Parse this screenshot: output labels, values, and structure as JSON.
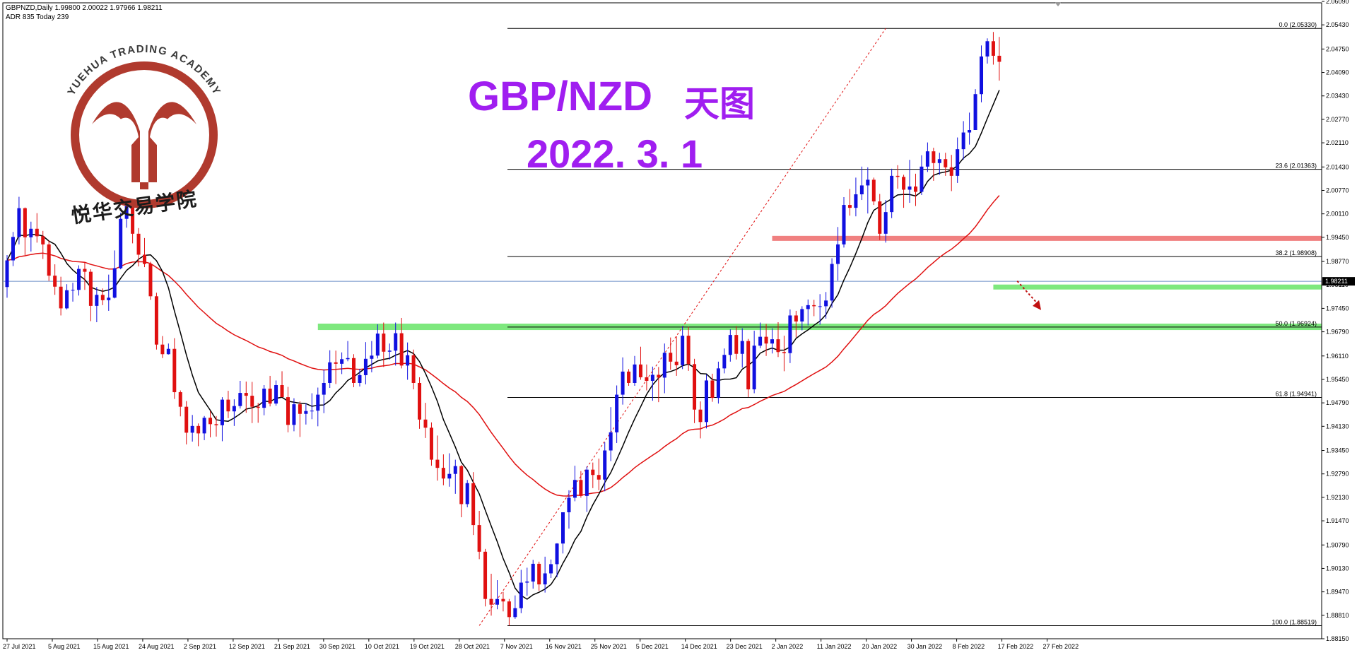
{
  "header": {
    "symbol_line": "GBPNZD,Daily  1.99800 2.00022 1.97966 1.98211",
    "adr_line": "ADR 835  Today 239"
  },
  "titles": {
    "pair": "GBP/NZD",
    "timeframe_cn": "天图",
    "date": "2022. 3. 1"
  },
  "logo": {
    "arc_text": "YUEHUA TRADING ACADEMY",
    "cn_text": "悦华交易学院",
    "brand_color": "#b03a2e"
  },
  "colors": {
    "bull": "#1010e0",
    "bear": "#e01010",
    "ma_fast": "#000000",
    "ma_slow": "#e01010",
    "support_zone": "#7ee87e",
    "resistance_zone": "#f08080",
    "fib_line": "#000000",
    "title": "#a01ef0",
    "current_price_line": "#6a8ec8"
  },
  "chart_data": {
    "type": "candlestick",
    "symbol": "GBPNZD",
    "timeframe": "Daily",
    "current_price": 1.98211,
    "current_price_label": "1.98211",
    "ylim": [
      1.8815,
      2.0605
    ],
    "y_tick_labels": [
      "2.06090",
      "2.05430",
      "2.04750",
      "2.04090",
      "2.03430",
      "2.02770",
      "2.02110",
      "2.01430",
      "2.00770",
      "2.00110",
      "1.99450",
      "1.98770",
      "1.98110",
      "1.97450",
      "1.96790",
      "1.96110",
      "1.95450",
      "1.94790",
      "1.94130",
      "1.93450",
      "1.92790",
      "1.92130",
      "1.91470",
      "1.90790",
      "1.90130",
      "1.89470",
      "1.88810",
      "1.88150"
    ],
    "x_tick_labels": [
      "27 Jul 2021",
      "5 Aug 2021",
      "15 Aug 2021",
      "24 Aug 2021",
      "2 Sep 2021",
      "12 Sep 2021",
      "21 Sep 2021",
      "30 Sep 2021",
      "10 Oct 2021",
      "19 Oct 2021",
      "28 Oct 2021",
      "7 Nov 2021",
      "16 Nov 2021",
      "25 Nov 2021",
      "5 Dec 2021",
      "14 Dec 2021",
      "23 Dec 2021",
      "2 Jan 2022",
      "11 Jan 2022",
      "20 Jan 2022",
      "30 Jan 2022",
      "8 Feb 2022",
      "17 Feb 2022",
      "27 Feb 2022"
    ],
    "fibonacci": [
      {
        "label": "0.0 (2.05330)",
        "price": 2.0533
      },
      {
        "label": "23.6 (2.01363)",
        "price": 2.01363
      },
      {
        "label": "38.2 (1.98908)",
        "price": 1.98908
      },
      {
        "label": "50.0 (1.96924)",
        "price": 1.96924
      },
      {
        "label": "61.8 (1.94941)",
        "price": 1.94941
      },
      {
        "label": "100.0 (1.88519)",
        "price": 1.88519
      }
    ],
    "zones": [
      {
        "kind": "resistance",
        "from_bar": 128,
        "price_low": 1.9935,
        "price_high": 1.9949
      },
      {
        "kind": "support",
        "from_bar": 52,
        "price_low": 1.9684,
        "price_high": 1.9702
      },
      {
        "kind": "support",
        "from_bar": 165,
        "price_low": 1.9798,
        "price_high": 1.9812
      }
    ],
    "trendline": {
      "from_bar": 79,
      "from_price": 1.8852,
      "to_bar": 147,
      "to_price": 2.0533
    },
    "arrow": {
      "from_bar": 169,
      "from_price": 1.9822,
      "to_bar": 173,
      "to_price": 1.974
    },
    "candles": [
      [
        1.9805,
        1.9895,
        1.9775,
        1.988
      ],
      [
        1.988,
        1.996,
        1.9864,
        1.9946
      ],
      [
        1.9946,
        2.0059,
        1.9925,
        2.0027
      ],
      [
        2.0027,
        2.0029,
        1.9895,
        1.9945
      ],
      [
        1.9945,
        1.9989,
        1.9905,
        1.9969
      ],
      [
        1.9969,
        2.0013,
        1.993,
        1.9948
      ],
      [
        1.9948,
        1.9963,
        1.9884,
        1.9925
      ],
      [
        1.9925,
        1.9936,
        1.9822,
        1.9837
      ],
      [
        1.9837,
        1.9869,
        1.9783,
        1.9806
      ],
      [
        1.9806,
        1.9834,
        1.9725,
        1.9745
      ],
      [
        1.9745,
        1.9813,
        1.9742,
        1.9796
      ],
      [
        1.9796,
        1.9817,
        1.9764,
        1.9797
      ],
      [
        1.9797,
        1.9866,
        1.9781,
        1.9856
      ],
      [
        1.9856,
        1.9876,
        1.9797,
        1.9848
      ],
      [
        1.9848,
        1.9855,
        1.9709,
        1.9752
      ],
      [
        1.9752,
        1.9805,
        1.9706,
        1.9783
      ],
      [
        1.9783,
        1.9801,
        1.9754,
        1.9768
      ],
      [
        1.9768,
        1.984,
        1.9738,
        1.9775
      ],
      [
        1.9775,
        1.9908,
        1.9773,
        1.9858
      ],
      [
        1.9858,
        2.0014,
        1.9855,
        1.9997
      ],
      [
        1.9997,
        2.0044,
        1.9972,
        2.0035
      ],
      [
        2.0035,
        2.0045,
        1.9928,
        1.9955
      ],
      [
        1.9955,
        1.9971,
        1.9863,
        1.9896
      ],
      [
        1.9896,
        1.9943,
        1.9861,
        1.987
      ],
      [
        1.987,
        1.9876,
        1.9769,
        1.9779
      ],
      [
        1.9779,
        1.9789,
        1.9629,
        1.9643
      ],
      [
        1.9643,
        1.9667,
        1.9605,
        1.9616
      ],
      [
        1.9616,
        1.9646,
        1.9615,
        1.9631
      ],
      [
        1.9631,
        1.9661,
        1.949,
        1.9509
      ],
      [
        1.9509,
        1.9514,
        1.9441,
        1.9468
      ],
      [
        1.9468,
        1.9484,
        1.9362,
        1.9395
      ],
      [
        1.9395,
        1.9445,
        1.937,
        1.9414
      ],
      [
        1.9414,
        1.9421,
        1.9357,
        1.9393
      ],
      [
        1.9393,
        1.9442,
        1.9374,
        1.9437
      ],
      [
        1.9437,
        1.9456,
        1.9382,
        1.9419
      ],
      [
        1.9419,
        1.9442,
        1.9384,
        1.9416
      ],
      [
        1.9416,
        1.9495,
        1.9371,
        1.9488
      ],
      [
        1.9488,
        1.9513,
        1.9436,
        1.9455
      ],
      [
        1.9455,
        1.9489,
        1.9414,
        1.947
      ],
      [
        1.947,
        1.9541,
        1.9463,
        1.9507
      ],
      [
        1.9507,
        1.9539,
        1.9451,
        1.9499
      ],
      [
        1.9499,
        1.9538,
        1.9422,
        1.9468
      ],
      [
        1.9468,
        1.9479,
        1.9423,
        1.9465
      ],
      [
        1.9465,
        1.9529,
        1.9444,
        1.9519
      ],
      [
        1.9519,
        1.9555,
        1.9469,
        1.9477
      ],
      [
        1.9477,
        1.9542,
        1.9471,
        1.9529
      ],
      [
        1.9529,
        1.9568,
        1.9495,
        1.9495
      ],
      [
        1.9495,
        1.9524,
        1.9396,
        1.9417
      ],
      [
        1.9417,
        1.9492,
        1.9399,
        1.9475
      ],
      [
        1.9475,
        1.9483,
        1.9383,
        1.9448
      ],
      [
        1.9448,
        1.9478,
        1.9418,
        1.9456
      ],
      [
        1.9456,
        1.9506,
        1.9433,
        1.9457
      ],
      [
        1.9457,
        1.9522,
        1.9413,
        1.9502
      ],
      [
        1.9502,
        1.9573,
        1.945,
        1.9535
      ],
      [
        1.9535,
        1.9627,
        1.9521,
        1.9593
      ],
      [
        1.9593,
        1.9626,
        1.9532,
        1.9589
      ],
      [
        1.9589,
        1.9621,
        1.956,
        1.9602
      ],
      [
        1.9602,
        1.9653,
        1.9596,
        1.9605
      ],
      [
        1.9605,
        1.9616,
        1.9523,
        1.9535
      ],
      [
        1.9535,
        1.9575,
        1.9525,
        1.9557
      ],
      [
        1.9557,
        1.965,
        1.9531,
        1.9603
      ],
      [
        1.9603,
        1.9653,
        1.9565,
        1.9612
      ],
      [
        1.9612,
        1.97,
        1.9604,
        1.9674
      ],
      [
        1.9674,
        1.9705,
        1.958,
        1.9623
      ],
      [
        1.9623,
        1.9646,
        1.9601,
        1.9626
      ],
      [
        1.9626,
        1.9705,
        1.9584,
        1.9675
      ],
      [
        1.9675,
        1.9718,
        1.9576,
        1.9584
      ],
      [
        1.9584,
        1.9649,
        1.9544,
        1.9613
      ],
      [
        1.9613,
        1.9629,
        1.9517,
        1.9535
      ],
      [
        1.9535,
        1.9551,
        1.9406,
        1.9432
      ],
      [
        1.9432,
        1.9479,
        1.938,
        1.9409
      ],
      [
        1.9409,
        1.9424,
        1.9302,
        1.9319
      ],
      [
        1.9319,
        1.9387,
        1.926,
        1.9296
      ],
      [
        1.9296,
        1.9334,
        1.9247,
        1.9266
      ],
      [
        1.9266,
        1.9337,
        1.9243,
        1.9279
      ],
      [
        1.9279,
        1.9319,
        1.9223,
        1.9301
      ],
      [
        1.9301,
        1.9304,
        1.9157,
        1.9194
      ],
      [
        1.9194,
        1.9262,
        1.9185,
        1.9253
      ],
      [
        1.9253,
        1.9284,
        1.9107,
        1.9135
      ],
      [
        1.9135,
        1.9175,
        1.9039,
        1.906
      ],
      [
        1.906,
        1.9068,
        1.8906,
        1.8927
      ],
      [
        1.8927,
        1.8998,
        1.888,
        1.8911
      ],
      [
        1.8911,
        1.898,
        1.8898,
        1.8927
      ],
      [
        1.8927,
        1.8947,
        1.8892,
        1.892
      ],
      [
        1.892,
        1.8927,
        1.8852,
        1.8876
      ],
      [
        1.8876,
        1.8937,
        1.8871,
        1.8901
      ],
      [
        1.8901,
        1.9009,
        1.8887,
        1.8973
      ],
      [
        1.8973,
        1.9015,
        1.8936,
        1.8976
      ],
      [
        1.8976,
        1.9037,
        1.8956,
        1.9026
      ],
      [
        1.9026,
        1.9032,
        1.895,
        1.8968
      ],
      [
        1.8968,
        1.9046,
        1.8945,
        1.8999
      ],
      [
        1.8999,
        1.9038,
        1.8986,
        1.9025
      ],
      [
        1.9025,
        1.9084,
        1.8988,
        1.9083
      ],
      [
        1.9083,
        1.9171,
        1.9055,
        1.9171
      ],
      [
        1.9171,
        1.9233,
        1.9125,
        1.9212
      ],
      [
        1.9212,
        1.9302,
        1.9202,
        1.9262
      ],
      [
        1.9262,
        1.9287,
        1.9212,
        1.9217
      ],
      [
        1.9217,
        1.93,
        1.9172,
        1.9291
      ],
      [
        1.9291,
        1.9311,
        1.9239,
        1.9276
      ],
      [
        1.9276,
        1.9322,
        1.9233,
        1.9263
      ],
      [
        1.9263,
        1.9368,
        1.923,
        1.9345
      ],
      [
        1.9345,
        1.9467,
        1.9315,
        1.9396
      ],
      [
        1.9396,
        1.9528,
        1.9366,
        1.9502
      ],
      [
        1.9502,
        1.9607,
        1.9474,
        1.9567
      ],
      [
        1.9567,
        1.9574,
        1.9527,
        1.9535
      ],
      [
        1.9535,
        1.9611,
        1.9527,
        1.9587
      ],
      [
        1.9587,
        1.9637,
        1.9544,
        1.9551
      ],
      [
        1.9551,
        1.9587,
        1.9514,
        1.9541
      ],
      [
        1.9541,
        1.9581,
        1.9485,
        1.9558
      ],
      [
        1.9558,
        1.958,
        1.9481,
        1.955
      ],
      [
        1.955,
        1.9646,
        1.9506,
        1.962
      ],
      [
        1.962,
        1.9663,
        1.9572,
        1.9595
      ],
      [
        1.9595,
        1.9666,
        1.9555,
        1.9585
      ],
      [
        1.9585,
        1.9695,
        1.9574,
        1.9668
      ],
      [
        1.9668,
        1.9693,
        1.9569,
        1.9588
      ],
      [
        1.9588,
        1.9603,
        1.9422,
        1.946
      ],
      [
        1.946,
        1.9483,
        1.9379,
        1.9425
      ],
      [
        1.9425,
        1.9559,
        1.9407,
        1.9542
      ],
      [
        1.9542,
        1.9561,
        1.9482,
        1.9493
      ],
      [
        1.9493,
        1.9595,
        1.9477,
        1.9576
      ],
      [
        1.9576,
        1.9632,
        1.9562,
        1.9614
      ],
      [
        1.9614,
        1.9686,
        1.9595,
        1.967
      ],
      [
        1.967,
        1.9695,
        1.9601,
        1.9617
      ],
      [
        1.9617,
        1.9689,
        1.9578,
        1.9653
      ],
      [
        1.9653,
        1.9659,
        1.9495,
        1.9517
      ],
      [
        1.9517,
        1.9682,
        1.9506,
        1.964
      ],
      [
        1.964,
        1.9705,
        1.9633,
        1.9665
      ],
      [
        1.9665,
        1.9701,
        1.9611,
        1.9646
      ],
      [
        1.9646,
        1.9689,
        1.9618,
        1.9658
      ],
      [
        1.9658,
        1.9706,
        1.9608,
        1.9622
      ],
      [
        1.9622,
        1.9668,
        1.9568,
        1.9619
      ],
      [
        1.9619,
        1.9742,
        1.9591,
        1.9725
      ],
      [
        1.9725,
        1.9738,
        1.9663,
        1.9708
      ],
      [
        1.9708,
        1.9751,
        1.9683,
        1.9743
      ],
      [
        1.9743,
        1.977,
        1.9697,
        1.9754
      ],
      [
        1.9754,
        1.9769,
        1.9723,
        1.9751
      ],
      [
        1.9751,
        1.9785,
        1.9699,
        1.9751
      ],
      [
        1.9751,
        1.9791,
        1.9716,
        1.9767
      ],
      [
        1.9767,
        1.9886,
        1.9747,
        1.987
      ],
      [
        1.987,
        1.9974,
        1.9823,
        1.9925
      ],
      [
        1.9925,
        2.0058,
        1.9916,
        2.0036
      ],
      [
        2.0036,
        2.0081,
        2.0006,
        2.0028
      ],
      [
        2.0028,
        2.0113,
        2.0004,
        2.0066
      ],
      [
        2.0066,
        2.0144,
        2.005,
        2.0091
      ],
      [
        2.0091,
        2.0142,
        2.0012,
        2.0107
      ],
      [
        2.0107,
        2.0113,
        2.0036,
        2.0046
      ],
      [
        2.0046,
        2.0067,
        1.9937,
        1.9955
      ],
      [
        1.9955,
        2.005,
        1.993,
        2.0016
      ],
      [
        2.0016,
        2.0138,
        1.9999,
        2.0118
      ],
      [
        2.0118,
        2.0148,
        2.0082,
        2.0115
      ],
      [
        2.0115,
        2.0121,
        2.0028,
        2.0079
      ],
      [
        2.0079,
        2.0163,
        2.0042,
        2.0088
      ],
      [
        2.0088,
        2.0124,
        2.0033,
        2.0073
      ],
      [
        2.0073,
        2.0176,
        2.0064,
        2.0144
      ],
      [
        2.0144,
        2.0212,
        2.0129,
        2.0187
      ],
      [
        2.0187,
        2.0197,
        2.0104,
        2.0154
      ],
      [
        2.0154,
        2.0183,
        2.0121,
        2.0165
      ],
      [
        2.0165,
        2.0183,
        2.0118,
        2.0142
      ],
      [
        2.0142,
        2.0177,
        2.0075,
        2.0118
      ],
      [
        2.0118,
        2.0226,
        2.0098,
        2.0193
      ],
      [
        2.0193,
        2.0272,
        2.0164,
        2.024
      ],
      [
        2.024,
        2.0296,
        2.0206,
        2.0247
      ],
      [
        2.0247,
        2.0362,
        2.0247,
        2.0348
      ],
      [
        2.0348,
        2.0485,
        2.0325,
        2.0454
      ],
      [
        2.0454,
        2.0505,
        2.0434,
        2.0497
      ],
      [
        2.0497,
        2.0523,
        2.0431,
        2.0456
      ],
      [
        2.0456,
        2.0509,
        2.0386,
        2.0439
      ]
    ]
  }
}
